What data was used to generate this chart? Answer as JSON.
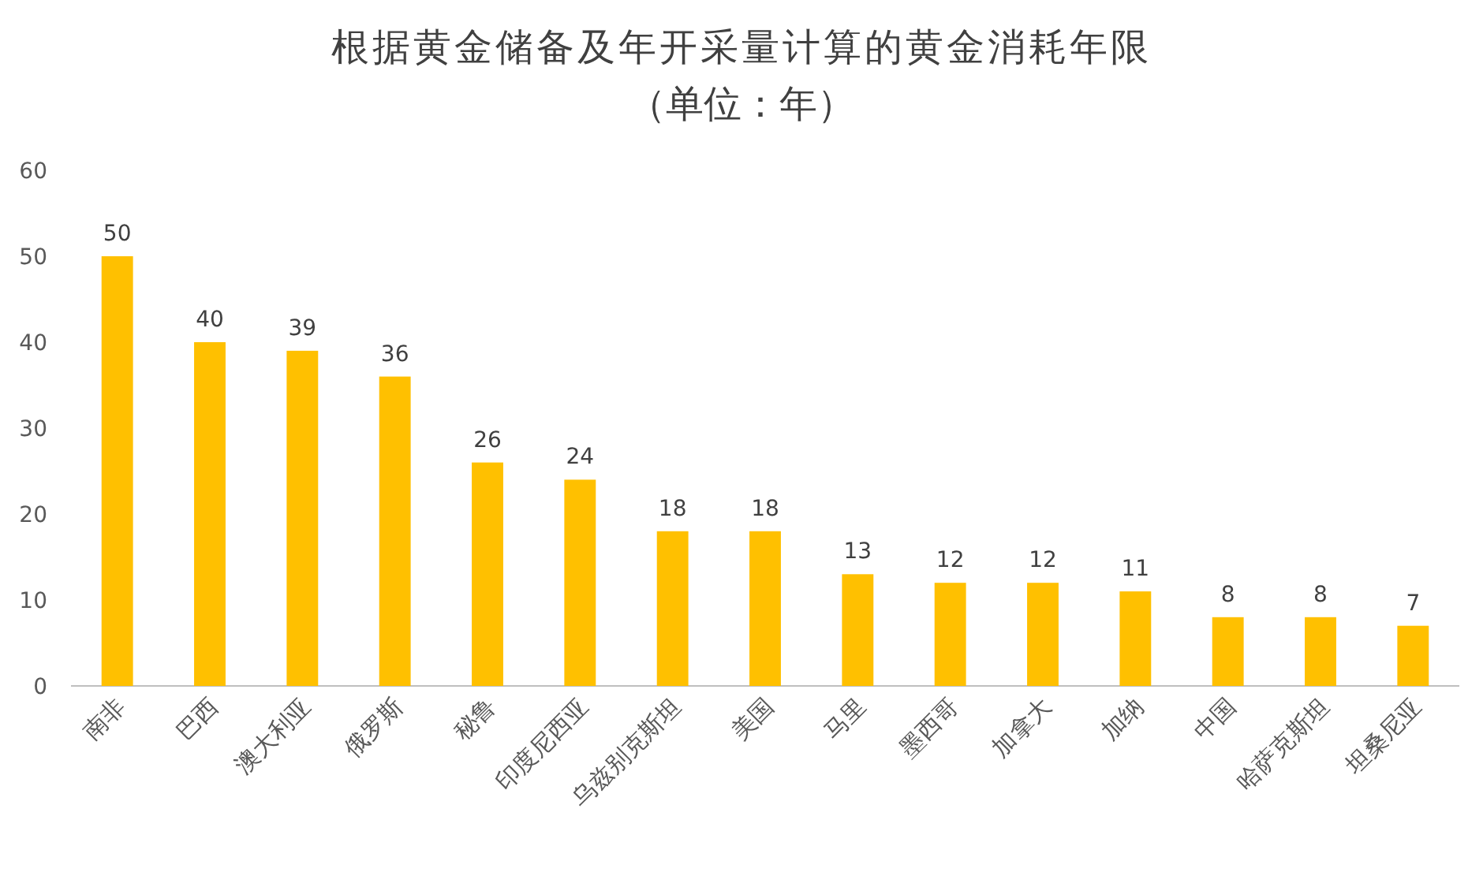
{
  "chart_data": {
    "type": "bar",
    "title": "根据黄金储备及年开采量计算的黄金消耗年限",
    "subtitle": "（单位：年）",
    "categories": [
      "南非",
      "巴西",
      "澳大利亚",
      "俄罗斯",
      "秘鲁",
      "印度尼西亚",
      "乌兹别克斯坦",
      "美国",
      "马里",
      "墨西哥",
      "加拿大",
      "加纳",
      "中国",
      "哈萨克斯坦",
      "坦桑尼亚"
    ],
    "values": [
      50,
      40,
      39,
      36,
      26,
      24,
      18,
      18,
      13,
      12,
      12,
      11,
      8,
      8,
      7
    ],
    "color": "#ffc000",
    "ylim": [
      0,
      60
    ],
    "yticks": [
      0,
      10,
      20,
      30,
      40,
      50,
      60
    ],
    "grid": false,
    "data_labels": true
  }
}
